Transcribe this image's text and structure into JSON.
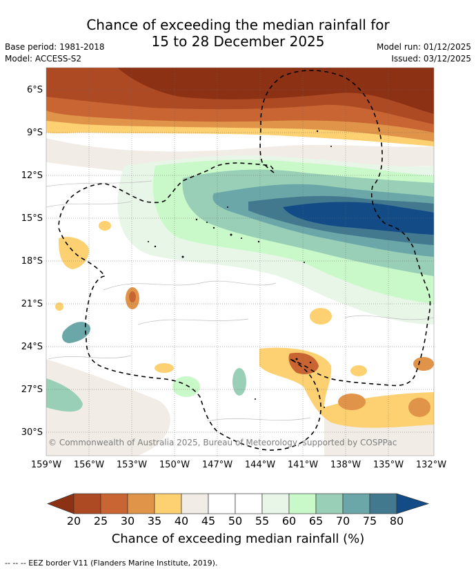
{
  "title_line1": "Chance of exceeding the median rainfall for",
  "title_line2": "15 to 28 December 2025",
  "base_period": "Base period: 1981-2018",
  "model": "Model: ACCESS-S2",
  "model_run": "Model run: 01/12/2025",
  "issued": "Issued: 03/12/2025",
  "lat_labels": [
    "6°S",
    "9°S",
    "12°S",
    "15°S",
    "18°S",
    "21°S",
    "24°S",
    "27°S",
    "30°S"
  ],
  "lon_labels": [
    "159°W",
    "156°W",
    "153°W",
    "150°W",
    "147°W",
    "144°W",
    "141°W",
    "138°W",
    "135°W",
    "132°W"
  ],
  "copyright": "© Commonwealth of Australia 2025, Bureau of Meteorology, supported by COSPPac",
  "colorbar": {
    "ticks": [
      "20",
      "25",
      "30",
      "35",
      "40",
      "45",
      "50",
      "55",
      "60",
      "65",
      "70",
      "75",
      "80"
    ],
    "label": "Chance of exceeding median rainfall (%)",
    "colors": [
      "#8c3113",
      "#ad4a24",
      "#c86533",
      "#e0944a",
      "#fdd072",
      "#f1ece5",
      "#ffffff",
      "#ffffff",
      "#e8f6e7",
      "#c9f8c9",
      "#99cfb6",
      "#6ba7a8",
      "#43798f",
      "#124b85"
    ]
  },
  "eez_note": "--  --  -- EEZ border V11 (Flanders Marine Institute, 2019)."
}
